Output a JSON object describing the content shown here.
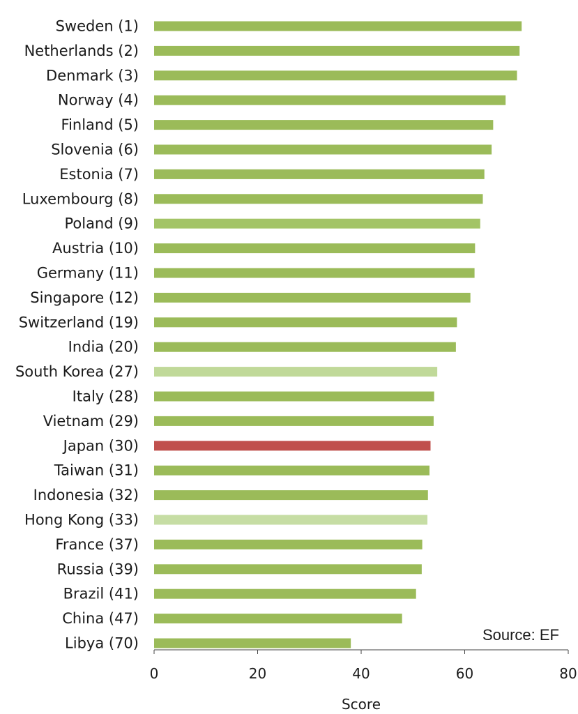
{
  "chart_data": {
    "type": "bar",
    "orientation": "horizontal",
    "categories": [
      "Sweden (1)",
      "Netherlands (2)",
      "Denmark (3)",
      "Norway (4)",
      "Finland (5)",
      "Slovenia (6)",
      "Estonia (7)",
      "Luxembourg (8)",
      "Poland (9)",
      "Austria (10)",
      "Germany (11)",
      "Singapore (12)",
      "Switzerland (19)",
      "India (20)",
      "South Korea (27)",
      "Italy (28)",
      "Vietnam (29)",
      "Japan (30)",
      "Taiwan (31)",
      "Indonesia (32)",
      "Hong Kong (33)",
      "France (37)",
      "Russia (39)",
      "Brazil (41)",
      "China (47)",
      "Libya (70)"
    ],
    "values": [
      71.0,
      70.6,
      70.1,
      67.9,
      65.5,
      65.2,
      63.8,
      63.5,
      63.0,
      62.0,
      61.9,
      61.1,
      58.5,
      58.3,
      54.7,
      54.1,
      54.0,
      53.4,
      53.2,
      52.9,
      52.8,
      51.8,
      51.7,
      50.6,
      47.9,
      38.0
    ],
    "bar_colors": [
      "#9bbb59",
      "#9bbb59",
      "#9bbb59",
      "#9bbb59",
      "#9bbb59",
      "#9bbb59",
      "#9bbb59",
      "#9bbb59",
      "#a3c466",
      "#9bbb59",
      "#9bbb59",
      "#9bbb59",
      "#9bbb59",
      "#9bbb59",
      "#c0d999",
      "#9bbb59",
      "#9bbb59",
      "#c0504d",
      "#9bbb59",
      "#9bbb59",
      "#c6dda4",
      "#9bbb59",
      "#9bbb59",
      "#9bbb59",
      "#9bbb59",
      "#9bbb59"
    ],
    "xlabel": "Score",
    "xlim": [
      0,
      80
    ],
    "xticks": [
      0,
      20,
      40,
      60,
      80
    ],
    "grid": false,
    "annotation": "Source: EF"
  }
}
